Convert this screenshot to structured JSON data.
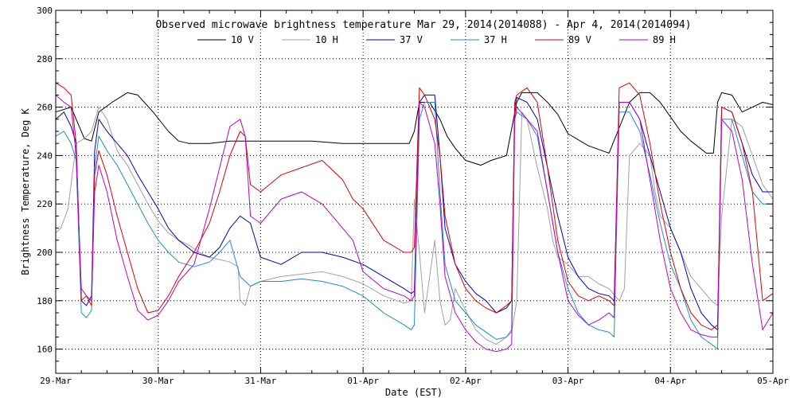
{
  "chart_data": {
    "type": "line",
    "title": "Observed microwave brightness temperature Mar 29, 2014(2014088) - Apr  4, 2014(2014094)",
    "xlabel": "Date (EST)",
    "ylabel": "Brightness Temperature, Deg K",
    "xlim": [
      0,
      7
    ],
    "ylim": [
      150,
      300
    ],
    "yticks": [
      160,
      180,
      200,
      220,
      240,
      260,
      280,
      300
    ],
    "categories": [
      "29-Mar",
      "30-Mar",
      "31-Mar",
      "01-Apr",
      "02-Apr",
      "03-Apr",
      "04-Apr",
      "05-Apr"
    ],
    "grid": true,
    "legend_position": "top",
    "series": [
      {
        "name": "10 V",
        "color": "#000000",
        "x": [
          0,
          0.15,
          0.2,
          0.28,
          0.35,
          0.42,
          0.55,
          0.7,
          0.8,
          0.95,
          1.1,
          1.2,
          1.3,
          1.5,
          1.7,
          2.0,
          2.5,
          2.8,
          3.0,
          3.3,
          3.45,
          3.5,
          3.55,
          3.65,
          3.75,
          3.82,
          3.9,
          4.0,
          4.15,
          4.25,
          4.4,
          4.5,
          4.55,
          4.7,
          4.8,
          4.9,
          5.0,
          5.2,
          5.4,
          5.6,
          5.7,
          5.8,
          5.9,
          6.0,
          6.1,
          6.2,
          6.35,
          6.42,
          6.46,
          6.5,
          6.6,
          6.7,
          6.8,
          6.9,
          7.0
        ],
        "values": [
          258,
          260,
          255,
          247,
          246,
          258,
          262,
          266,
          265,
          258,
          250,
          246,
          245,
          245,
          246,
          246,
          246,
          245,
          245,
          245,
          245,
          250,
          262,
          262,
          255,
          248,
          243,
          238,
          236,
          238,
          240,
          262,
          266,
          266,
          262,
          257,
          249,
          244,
          241,
          262,
          266,
          266,
          262,
          256,
          250,
          246,
          241,
          241,
          262,
          266,
          265,
          258,
          260,
          262,
          261
        ]
      },
      {
        "name": "10 H",
        "color": "#a0a0a0",
        "x": [
          0,
          0.05,
          0.12,
          0.2,
          0.28,
          0.35,
          0.42,
          0.5,
          0.6,
          0.7,
          0.8,
          0.9,
          1.0,
          1.1,
          1.2,
          1.3,
          1.4,
          1.5,
          1.6,
          1.7,
          1.78,
          1.8,
          1.85,
          1.9,
          2.0,
          2.2,
          2.4,
          2.6,
          2.8,
          3.0,
          3.2,
          3.4,
          3.47,
          3.5,
          3.55,
          3.6,
          3.65,
          3.7,
          3.75,
          3.8,
          3.85,
          3.9,
          4.0,
          4.1,
          4.2,
          4.3,
          4.4,
          4.45,
          4.5,
          4.55,
          4.6,
          4.7,
          4.8,
          4.85,
          4.9,
          5.0,
          5.1,
          5.2,
          5.3,
          5.4,
          5.5,
          5.55,
          5.6,
          5.7,
          5.8,
          5.85,
          5.9,
          6.0,
          6.1,
          6.2,
          6.3,
          6.4,
          6.46,
          6.5,
          6.6,
          6.7,
          6.8,
          6.9,
          7.0
        ],
        "values": [
          208,
          210,
          218,
          245,
          247,
          250,
          260,
          255,
          242,
          236,
          228,
          220,
          213,
          208,
          205,
          203,
          200,
          198,
          197,
          196,
          194,
          180,
          178,
          186,
          188,
          190,
          191,
          192,
          190,
          187,
          182,
          179,
          180,
          222,
          200,
          175,
          190,
          205,
          180,
          170,
          172,
          185,
          176,
          168,
          164,
          162,
          165,
          167,
          180,
          258,
          255,
          235,
          218,
          205,
          198,
          195,
          190,
          190,
          187,
          185,
          180,
          185,
          240,
          245,
          240,
          225,
          215,
          210,
          200,
          190,
          185,
          180,
          178,
          215,
          255,
          252,
          240,
          228,
          222
        ]
      },
      {
        "name": "37 V",
        "color": "#0000c0",
        "x": [
          0,
          0.08,
          0.15,
          0.2,
          0.25,
          0.3,
          0.35,
          0.38,
          0.42,
          0.5,
          0.6,
          0.7,
          0.8,
          0.9,
          1.0,
          1.1,
          1.2,
          1.35,
          1.5,
          1.6,
          1.7,
          1.8,
          1.9,
          2.0,
          2.2,
          2.4,
          2.6,
          2.8,
          3.0,
          3.2,
          3.4,
          3.47,
          3.5,
          3.55,
          3.6,
          3.7,
          3.75,
          3.8,
          3.9,
          4.0,
          4.1,
          4.2,
          4.3,
          4.4,
          4.45,
          4.48,
          4.5,
          4.6,
          4.7,
          4.8,
          4.9,
          5.0,
          5.1,
          5.2,
          5.3,
          5.4,
          5.45,
          5.5,
          5.6,
          5.7,
          5.8,
          5.9,
          6.0,
          6.1,
          6.2,
          6.3,
          6.4,
          6.46,
          6.5,
          6.6,
          6.7,
          6.8,
          6.9,
          7.0
        ],
        "values": [
          255,
          258,
          252,
          245,
          180,
          178,
          182,
          242,
          255,
          250,
          245,
          240,
          232,
          225,
          218,
          210,
          205,
          200,
          198,
          202,
          210,
          215,
          212,
          198,
          195,
          200,
          200,
          198,
          195,
          190,
          185,
          183,
          184,
          262,
          265,
          265,
          240,
          210,
          195,
          188,
          183,
          180,
          175,
          177,
          180,
          260,
          264,
          262,
          255,
          235,
          215,
          198,
          190,
          185,
          183,
          182,
          180,
          262,
          262,
          255,
          240,
          225,
          210,
          200,
          185,
          175,
          170,
          168,
          260,
          258,
          245,
          232,
          225,
          225
        ]
      },
      {
        "name": "37 H",
        "color": "#1e8ad8",
        "x": [
          0,
          0.08,
          0.15,
          0.2,
          0.25,
          0.3,
          0.35,
          0.38,
          0.42,
          0.5,
          0.6,
          0.7,
          0.8,
          0.9,
          1.0,
          1.1,
          1.2,
          1.35,
          1.5,
          1.6,
          1.7,
          1.8,
          1.9,
          2.0,
          2.2,
          2.4,
          2.6,
          2.8,
          3.0,
          3.2,
          3.4,
          3.47,
          3.5,
          3.55,
          3.6,
          3.7,
          3.75,
          3.8,
          3.9,
          4.0,
          4.1,
          4.2,
          4.3,
          4.4,
          4.45,
          4.48,
          4.5,
          4.6,
          4.7,
          4.8,
          4.9,
          5.0,
          5.1,
          5.2,
          5.3,
          5.4,
          5.45,
          5.5,
          5.6,
          5.7,
          5.8,
          5.9,
          6.0,
          6.1,
          6.2,
          6.3,
          6.4,
          6.46,
          6.5,
          6.6,
          6.7,
          6.8,
          6.9,
          7.0
        ],
        "values": [
          248,
          250,
          245,
          238,
          175,
          173,
          176,
          235,
          248,
          242,
          236,
          228,
          220,
          212,
          205,
          200,
          196,
          194,
          196,
          200,
          205,
          190,
          186,
          188,
          188,
          189,
          188,
          186,
          182,
          175,
          170,
          168,
          170,
          255,
          262,
          262,
          225,
          195,
          180,
          175,
          170,
          167,
          164,
          165,
          168,
          255,
          258,
          255,
          248,
          225,
          200,
          185,
          175,
          170,
          168,
          167,
          165,
          258,
          258,
          250,
          232,
          212,
          195,
          185,
          172,
          165,
          162,
          160,
          255,
          255,
          240,
          225,
          220,
          220
        ]
      },
      {
        "name": "89 V",
        "color": "#e00000",
        "x": [
          0,
          0.08,
          0.15,
          0.2,
          0.25,
          0.3,
          0.35,
          0.38,
          0.42,
          0.5,
          0.6,
          0.7,
          0.8,
          0.9,
          1.0,
          1.1,
          1.2,
          1.35,
          1.5,
          1.6,
          1.7,
          1.8,
          1.85,
          1.9,
          2.0,
          2.2,
          2.4,
          2.6,
          2.8,
          2.9,
          3.0,
          3.2,
          3.4,
          3.47,
          3.5,
          3.55,
          3.6,
          3.7,
          3.75,
          3.8,
          3.9,
          4.0,
          4.1,
          4.2,
          4.3,
          4.4,
          4.45,
          4.48,
          4.5,
          4.6,
          4.7,
          4.8,
          4.9,
          5.0,
          5.1,
          5.2,
          5.3,
          5.4,
          5.45,
          5.5,
          5.6,
          5.7,
          5.8,
          5.9,
          6.0,
          6.1,
          6.2,
          6.3,
          6.4,
          6.46,
          6.5,
          6.6,
          6.7,
          6.8,
          6.9,
          7.0
        ],
        "values": [
          270,
          268,
          265,
          245,
          180,
          182,
          178,
          232,
          242,
          232,
          215,
          200,
          185,
          175,
          176,
          182,
          190,
          200,
          212,
          225,
          240,
          250,
          248,
          228,
          225,
          232,
          235,
          238,
          230,
          222,
          218,
          205,
          200,
          200,
          202,
          268,
          265,
          255,
          240,
          215,
          195,
          185,
          180,
          177,
          175,
          178,
          180,
          262,
          265,
          268,
          262,
          235,
          205,
          188,
          182,
          180,
          182,
          180,
          178,
          268,
          270,
          265,
          245,
          220,
          200,
          185,
          175,
          170,
          168,
          170,
          260,
          258,
          245,
          225,
          180,
          183
        ]
      },
      {
        "name": "89 H",
        "color": "#c000c8",
        "x": [
          0,
          0.08,
          0.15,
          0.2,
          0.25,
          0.3,
          0.35,
          0.38,
          0.42,
          0.5,
          0.6,
          0.7,
          0.8,
          0.9,
          1.0,
          1.1,
          1.2,
          1.35,
          1.5,
          1.6,
          1.7,
          1.8,
          1.85,
          1.9,
          2.0,
          2.2,
          2.4,
          2.6,
          2.8,
          2.9,
          3.0,
          3.2,
          3.4,
          3.47,
          3.5,
          3.55,
          3.6,
          3.7,
          3.75,
          3.8,
          3.9,
          4.0,
          4.1,
          4.2,
          4.3,
          4.4,
          4.45,
          4.48,
          4.5,
          4.6,
          4.7,
          4.8,
          4.9,
          5.0,
          5.1,
          5.2,
          5.3,
          5.4,
          5.45,
          5.5,
          5.6,
          5.7,
          5.8,
          5.9,
          6.0,
          6.1,
          6.2,
          6.3,
          6.4,
          6.46,
          6.5,
          6.6,
          6.7,
          6.8,
          6.9,
          7.0
        ],
        "values": [
          265,
          262,
          260,
          240,
          185,
          182,
          180,
          225,
          236,
          225,
          205,
          190,
          176,
          172,
          174,
          180,
          188,
          195,
          218,
          235,
          252,
          255,
          248,
          215,
          212,
          222,
          225,
          220,
          210,
          205,
          192,
          185,
          182,
          180,
          182,
          262,
          260,
          245,
          220,
          190,
          175,
          168,
          163,
          160,
          159,
          160,
          162,
          255,
          260,
          255,
          250,
          225,
          200,
          180,
          174,
          170,
          172,
          175,
          173,
          262,
          262,
          255,
          230,
          205,
          185,
          175,
          168,
          166,
          165,
          165,
          255,
          250,
          230,
          195,
          168,
          175
        ]
      }
    ]
  }
}
